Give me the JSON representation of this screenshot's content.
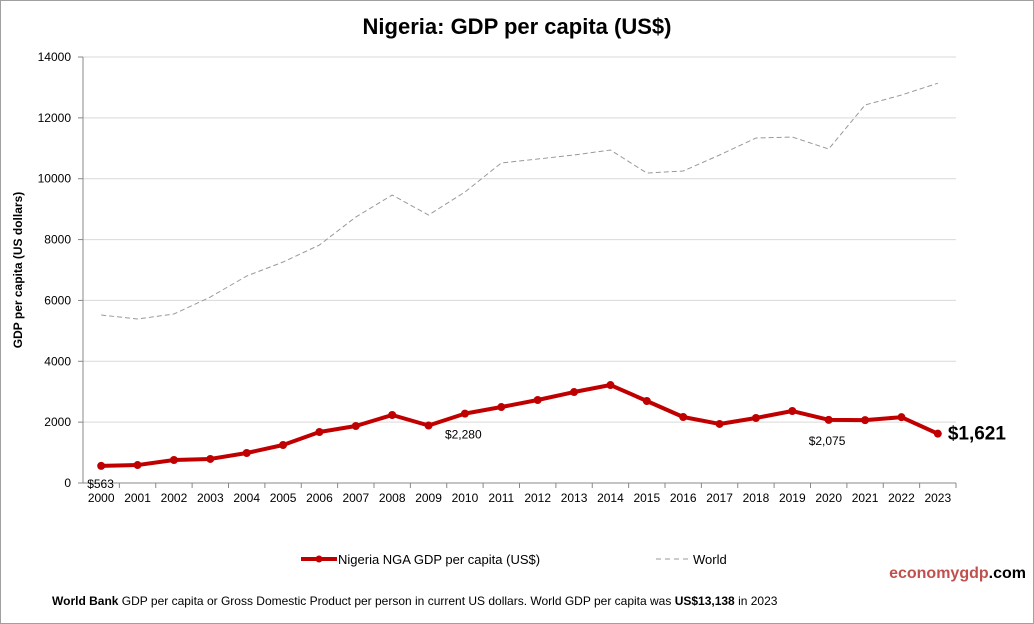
{
  "chart_data": {
    "type": "line",
    "title": "Nigeria: GDP per capita (US$)",
    "ylabel": "GDP per capita (US dollars)",
    "xlabel": "",
    "ylim": [
      0,
      14000
    ],
    "yticks": [
      "0",
      "2000",
      "4000",
      "6000",
      "8000",
      "10000",
      "12000",
      "14000"
    ],
    "grid": true,
    "legend_position": "bottom",
    "categories": [
      "2000",
      "2001",
      "2002",
      "2003",
      "2004",
      "2005",
      "2006",
      "2007",
      "2008",
      "2009",
      "2010",
      "2011",
      "2012",
      "2013",
      "2014",
      "2015",
      "2016",
      "2017",
      "2018",
      "2019",
      "2020",
      "2021",
      "2022",
      "2023"
    ],
    "series": [
      {
        "name": "Nigeria NGA GDP per capita (US$)",
        "color": "#c00000",
        "style": "solid-markers",
        "values": [
          563,
          590,
          756,
          790,
          986,
          1249,
          1676,
          1873,
          2235,
          1890,
          2280,
          2497,
          2728,
          2990,
          3220,
          2695,
          2169,
          1940,
          2136,
          2366,
          2075,
          2066,
          2163,
          1621
        ]
      },
      {
        "name": "World",
        "color": "#999999",
        "style": "dashed",
        "values": [
          5520,
          5390,
          5554,
          6112,
          6802,
          7262,
          7821,
          8741,
          9464,
          8807,
          9563,
          10516,
          10647,
          10779,
          10943,
          10187,
          10253,
          10779,
          11337,
          11370,
          10976,
          12422,
          12750,
          13138
        ]
      }
    ],
    "annotations": [
      {
        "year": "2000",
        "text": "$563"
      },
      {
        "year": "2010",
        "text": "$2,280"
      },
      {
        "year": "2020",
        "text": "$2,075"
      },
      {
        "year": "2023",
        "text": "$1,621"
      }
    ]
  },
  "brand": {
    "part1": "economy",
    "part2": "gdp",
    "part3": ".com",
    "color1": "#c0504d",
    "color2": "#000000"
  },
  "footer": {
    "bold1": "World Bank",
    "text1": " GDP per capita or Gross Domestic Product per person  in current US dollars.   World GDP per capita was ",
    "bold2": "US$13,138",
    "text2": "  in 2023"
  }
}
